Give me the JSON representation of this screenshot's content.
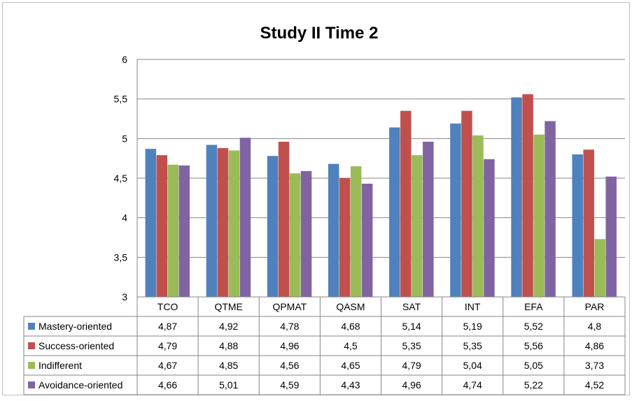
{
  "chart_data": {
    "type": "bar",
    "title": "Study II Time 2",
    "categories": [
      "TCO",
      "QTME",
      "QPMAT",
      "QASM",
      "SAT",
      "INT",
      "EFA",
      "PAR"
    ],
    "series": [
      {
        "name": "Mastery-oriented",
        "color": "#4F81BD",
        "values": [
          4.87,
          4.92,
          4.78,
          4.68,
          5.14,
          5.19,
          5.52,
          4.8
        ],
        "labels": [
          "4,87",
          "4,92",
          "4,78",
          "4,68",
          "5,14",
          "5,19",
          "5,52",
          "4,8"
        ]
      },
      {
        "name": "Success-oriented",
        "color": "#C0504D",
        "values": [
          4.79,
          4.88,
          4.96,
          4.5,
          5.35,
          5.35,
          5.56,
          4.86
        ],
        "labels": [
          "4,79",
          "4,88",
          "4,96",
          "4,5",
          "5,35",
          "5,35",
          "5,56",
          "4,86"
        ]
      },
      {
        "name": "Indifferent",
        "color": "#9BBB59",
        "values": [
          4.67,
          4.85,
          4.56,
          4.65,
          4.79,
          5.04,
          5.05,
          3.73
        ],
        "labels": [
          "4,67",
          "4,85",
          "4,56",
          "4,65",
          "4,79",
          "5,04",
          "5,05",
          "3,73"
        ]
      },
      {
        "name": "Avoidance-oriented",
        "color": "#8064A2",
        "values": [
          4.66,
          5.01,
          4.59,
          4.43,
          4.96,
          4.74,
          5.22,
          4.52
        ],
        "labels": [
          "4,66",
          "5,01",
          "4,59",
          "4,43",
          "4,96",
          "4,74",
          "5,22",
          "4,52"
        ]
      }
    ],
    "ylim": [
      3,
      6
    ],
    "yticks": [
      3,
      3.5,
      4,
      4.5,
      5,
      5.5,
      6
    ],
    "ytick_labels": [
      "3",
      "3,5",
      "4",
      "4,5",
      "5",
      "5,5",
      "6"
    ],
    "grid": true,
    "legend": "data-table"
  }
}
